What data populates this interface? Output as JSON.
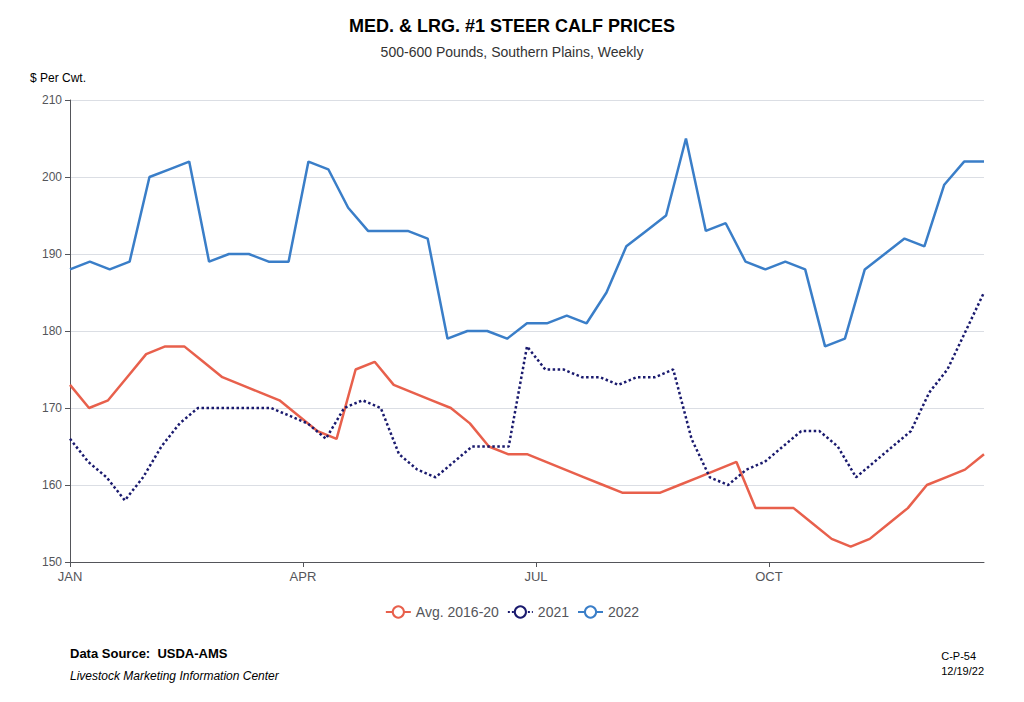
{
  "chart_data": {
    "type": "line",
    "title": "MED. & LRG. #1 STEER CALF PRICES",
    "subtitle": "500-600 Pounds, Southern Plains, Weekly",
    "ylabel": "$ Per Cwt.",
    "annotations": [
      "Data Source:  USDA-AMS",
      "Livestock Marketing Information Center",
      "C-P-54\n12/19/22"
    ],
    "xlim": [
      0,
      51
    ],
    "xticks": [
      {
        "value": 0,
        "label": "JAN"
      },
      {
        "value": 13,
        "label": "APR"
      },
      {
        "value": 26,
        "label": "JUL"
      },
      {
        "value": 39,
        "label": "OCT"
      }
    ],
    "ylim": [
      150,
      210
    ],
    "yticks": [
      150,
      160,
      170,
      180,
      190,
      200,
      210
    ],
    "grid": true,
    "legend": "bottom",
    "series": [
      {
        "name": "Avg. 2016-20",
        "color": "#E8604C",
        "line_style": "solid",
        "marker": "none",
        "x": [
          0,
          1.0625,
          2.125,
          3.1875,
          4.25,
          5.3125,
          6.375,
          7.4375,
          8.5,
          9.5625,
          10.625,
          11.6875,
          12.75,
          13.8125,
          14.875,
          15.9375,
          17,
          18.0625,
          19.125,
          20.1875,
          21.25,
          22.3125,
          23.375,
          24.4375,
          25.5,
          26.5625,
          27.625,
          28.6875,
          29.75,
          30.8125,
          31.875,
          32.9375,
          34,
          35.0625,
          36.125,
          37.1875,
          38.25,
          39.3125,
          40.375,
          41.4375,
          42.5,
          43.5625,
          44.625,
          45.6875,
          46.75,
          47.8125,
          48.875,
          49.9375,
          51
        ],
        "values": [
          173,
          170,
          171,
          174,
          177,
          178,
          178,
          176,
          174,
          173,
          172,
          171,
          169,
          167,
          166,
          175,
          176,
          173,
          172,
          171,
          170,
          168,
          165,
          164,
          164,
          163,
          162,
          161,
          160,
          159,
          159,
          159,
          160,
          161,
          162,
          163,
          157,
          157,
          157,
          155,
          153,
          152,
          153,
          155,
          157,
          160,
          161,
          162,
          164
        ]
      },
      {
        "name": "2021",
        "color": "#1a1a6e",
        "line_style": "dotted",
        "marker": "none",
        "x": [
          0,
          1.02,
          2.04,
          3.06,
          4.08,
          5.1,
          6.12,
          7.14,
          8.16,
          9.18,
          10.2,
          11.22,
          12.24,
          13.26,
          14.28,
          15.3,
          16.32,
          17.34,
          18.36,
          19.38,
          20.4,
          21.42,
          22.44,
          23.46,
          24.48,
          25.5,
          26.52,
          27.54,
          28.56,
          29.58,
          30.6,
          31.62,
          32.64,
          33.66,
          34.68,
          35.7,
          36.72,
          37.74,
          38.76,
          39.78,
          40.8,
          41.82,
          42.84,
          43.86,
          44.88,
          45.9,
          46.92,
          47.94,
          48.96,
          49.98,
          51
        ],
        "values": [
          166,
          163,
          161,
          158,
          161,
          165,
          168,
          170,
          170,
          170,
          170,
          170,
          169,
          168,
          166,
          170,
          171,
          170,
          164,
          162,
          161,
          163,
          165,
          165,
          165,
          178,
          175,
          175,
          174,
          174,
          173,
          174,
          174,
          175,
          166,
          161,
          160,
          162,
          163,
          165,
          167,
          167,
          165,
          161,
          163,
          165,
          167,
          172,
          175,
          180,
          185
        ]
      },
      {
        "name": "2022",
        "color": "#3a7ec8",
        "line_style": "solid",
        "marker": "none",
        "x": [
          0,
          1.1087,
          2.2174,
          3.3261,
          4.4348,
          5.5435,
          6.6522,
          7.7609,
          8.8696,
          9.9783,
          11.087,
          12.1957,
          13.3043,
          14.413,
          15.5217,
          16.6304,
          17.7391,
          18.8478,
          19.9565,
          21.0652,
          22.1739,
          23.2826,
          24.3913,
          25.5,
          26.6087,
          27.7174,
          28.8261,
          29.9348,
          31.0435,
          32.1522,
          33.2609,
          34.3696,
          35.4783,
          36.587,
          37.6957,
          38.8043,
          39.913,
          41.0217,
          42.1304,
          43.2391,
          44.3478,
          45.4565,
          46.5652,
          47.6739,
          48.7826,
          49.8913,
          51
        ],
        "values": [
          188,
          189,
          188,
          189,
          200,
          201,
          202,
          189,
          190,
          190,
          189,
          189,
          202,
          201,
          196,
          193,
          193,
          193,
          192,
          179,
          180,
          180,
          179,
          181,
          181,
          182,
          181,
          185,
          191,
          193,
          195,
          205,
          193,
          194,
          189,
          188,
          189,
          188,
          178,
          179,
          188,
          190,
          192,
          191,
          199,
          202,
          202
        ]
      }
    ]
  }
}
